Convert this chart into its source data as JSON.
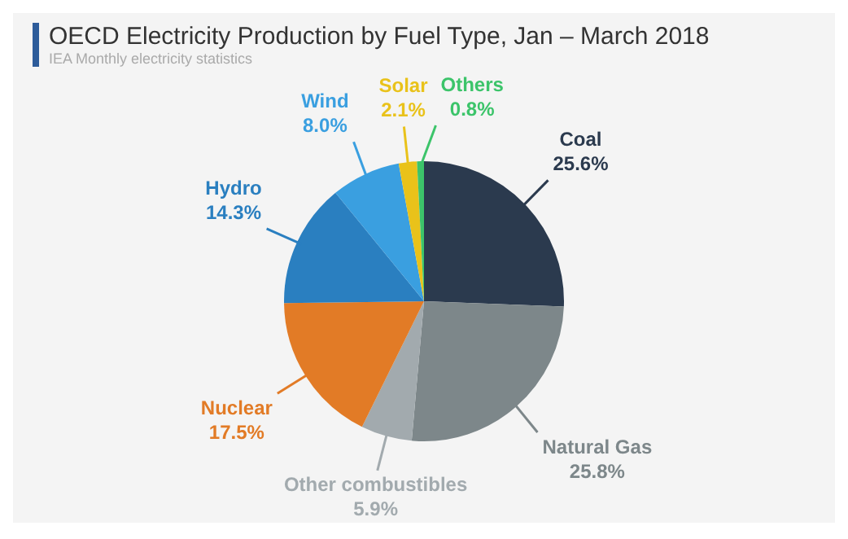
{
  "chart_data": {
    "type": "pie",
    "title": "OECD Electricity Production by Fuel Type, Jan – March 2018",
    "subtitle": "IEA Monthly electricity statistics",
    "categories": [
      "Coal",
      "Natural Gas",
      "Other combustibles",
      "Nuclear",
      "Hydro",
      "Wind",
      "Solar",
      "Others"
    ],
    "values": [
      25.6,
      25.8,
      5.9,
      17.5,
      14.3,
      8.0,
      2.1,
      0.8
    ],
    "value_labels": [
      "25.6%",
      "25.8%",
      "5.9%",
      "17.5%",
      "14.3%",
      "8.0%",
      "2.1%",
      "0.8%"
    ],
    "colors": [
      "#2b3a4e",
      "#7d878a",
      "#a2aaae",
      "#e27b26",
      "#2a7fc0",
      "#3a9fe0",
      "#e9c21a",
      "#3cc46a"
    ],
    "legend": false
  }
}
